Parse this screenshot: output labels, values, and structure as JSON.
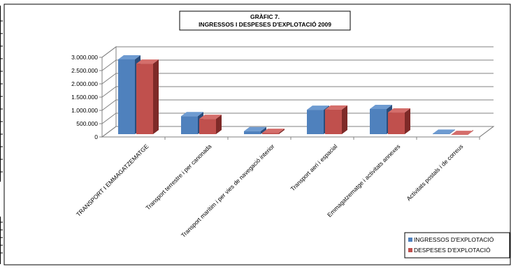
{
  "chart_data": {
    "type": "bar",
    "title": "GRÀFIC 7.",
    "subtitle": "INGRESSOS I DESPESES D'EXPLOTACIÓ 2009",
    "categories": [
      "TRANSPORT I EMMAGATZEMATGE",
      "Transport terrestre i per canonada",
      "Transport marítim i per vies de navegació interior",
      "Transport aeri i espacial",
      "Emmagatzematge i activitats annexes",
      "Activitats postals i de correus"
    ],
    "series": [
      {
        "name": "INGRESSOS D'EXPLOTACIÓ",
        "values": [
          2870000,
          730000,
          165000,
          970000,
          1000000,
          70000
        ]
      },
      {
        "name": "DESPESES D'EXPLOTACIÓ",
        "values": [
          2760000,
          680000,
          155000,
          1030000,
          920000,
          75000
        ]
      }
    ],
    "y_ticks": [
      "3.000.000",
      "2.500.000",
      "2.000.000",
      "1.500.000",
      "1.000.000",
      "500.000",
      "0"
    ],
    "ylim": [
      0,
      3000000
    ],
    "grid": true,
    "legend_position": "bottom-right",
    "colors": {
      "ingressos_front": "#4F81BD",
      "ingressos_side": "#2A4D7C",
      "ingressos_top": "#6E9BD1",
      "despeses_front": "#C0504D",
      "despeses_side": "#7E2A28",
      "despeses_top": "#D46E6B"
    }
  }
}
